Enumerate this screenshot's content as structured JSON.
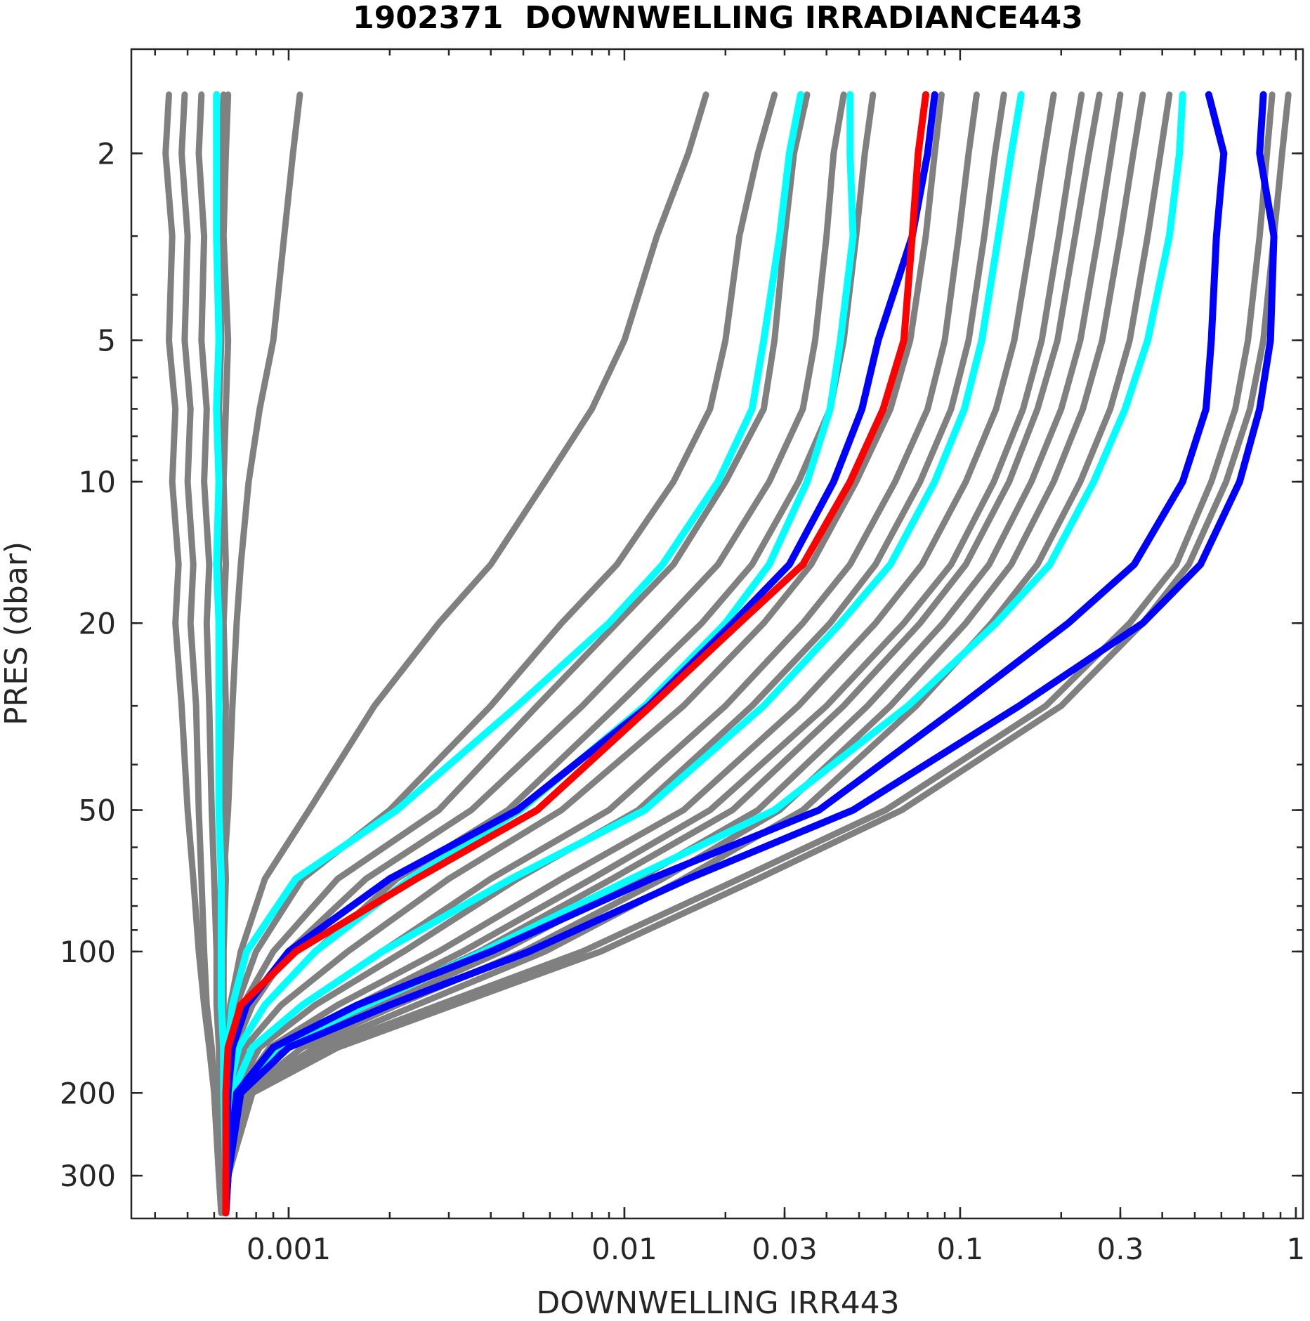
{
  "chart_data": {
    "type": "line",
    "title": "1902371  DOWNWELLING IRRADIANCE443",
    "xlabel": "DOWNWELLING IRR443",
    "ylabel": "PRES (dbar)",
    "x_scale": "log",
    "y_scale": "log",
    "y_reversed": true,
    "xlim": [
      0.00034,
      1.05
    ],
    "ylim": [
      1.2,
      370
    ],
    "x_ticks": [
      0.001,
      0.01,
      0.03,
      0.1,
      0.3,
      1
    ],
    "x_tick_labels": [
      "0.001",
      "0.01",
      "0.03",
      "0.1",
      "0.3",
      "1"
    ],
    "y_ticks": [
      2,
      5,
      10,
      20,
      50,
      100,
      200,
      300
    ],
    "y_tick_labels": [
      "2",
      "5",
      "10",
      "20",
      "50",
      "100",
      "200",
      "300"
    ],
    "grid": false,
    "colors": {
      "gray": "#808080",
      "cyan": "#00ffff",
      "blue": "#0000ff",
      "red": "#ff0000"
    },
    "pressure_levels": [
      1.5,
      2,
      3,
      5,
      7,
      10,
      15,
      20,
      30,
      50,
      70,
      100,
      130,
      160,
      200,
      300,
      360
    ],
    "series": [
      {
        "color": "gray",
        "values": [
          0.00044,
          0.00043,
          0.00045,
          0.00044,
          0.00046,
          0.00045,
          0.00047,
          0.00046,
          0.00048,
          0.0005,
          0.00052,
          0.00054,
          0.00056,
          0.00058,
          0.0006,
          0.00062,
          0.00063
        ]
      },
      {
        "color": "gray",
        "values": [
          0.00049,
          0.00048,
          0.0005,
          0.00049,
          0.00051,
          0.0005,
          0.00052,
          0.00051,
          0.00053,
          0.00054,
          0.00055,
          0.00056,
          0.00057,
          0.00059,
          0.0006,
          0.00062,
          0.00063
        ]
      },
      {
        "color": "gray",
        "values": [
          0.00055,
          0.00054,
          0.00056,
          0.00055,
          0.00057,
          0.00056,
          0.00058,
          0.00057,
          0.00058,
          0.00059,
          0.0006,
          0.00061,
          0.00061,
          0.00062,
          0.00062,
          0.00063,
          0.00064
        ]
      },
      {
        "color": "gray",
        "values": [
          0.00064,
          0.00063,
          0.00062,
          0.00063,
          0.00062,
          0.00063,
          0.00062,
          0.00063,
          0.00062,
          0.00062,
          0.00063,
          0.00063,
          0.00063,
          0.00063,
          0.00064,
          0.00064,
          0.00065
        ]
      },
      {
        "color": "gray",
        "values": [
          0.00066,
          0.00065,
          0.00064,
          0.00066,
          0.00065,
          0.00064,
          0.00065,
          0.00064,
          0.00065,
          0.00064,
          0.00065,
          0.00064,
          0.00064,
          0.00064,
          0.00064,
          0.00065,
          0.00065
        ]
      },
      {
        "color": "gray",
        "values": [
          0.00108,
          0.00103,
          0.00097,
          0.0009,
          0.00082,
          0.00076,
          0.00072,
          0.0007,
          0.00068,
          0.00066,
          0.00064,
          0.00063,
          0.00063,
          0.00063,
          0.00063,
          0.00064,
          0.00065
        ]
      },
      {
        "color": "gray",
        "values": [
          0.0175,
          0.0155,
          0.0125,
          0.01,
          0.008,
          0.0058,
          0.004,
          0.0028,
          0.0018,
          0.00115,
          0.00085,
          0.00072,
          0.00067,
          0.00065,
          0.00065,
          0.00065,
          0.00065
        ]
      },
      {
        "color": "gray",
        "values": [
          0.028,
          0.025,
          0.022,
          0.02,
          0.018,
          0.014,
          0.0095,
          0.0065,
          0.004,
          0.002,
          0.0011,
          0.0008,
          0.0007,
          0.00066,
          0.00065,
          0.00065,
          0.00065
        ]
      },
      {
        "color": "gray",
        "values": [
          0.035,
          0.032,
          0.03,
          0.028,
          0.026,
          0.02,
          0.014,
          0.0095,
          0.0055,
          0.0028,
          0.0014,
          0.0009,
          0.00073,
          0.00067,
          0.00065,
          0.00065,
          0.00065
        ]
      },
      {
        "color": "gray",
        "values": [
          0.045,
          0.042,
          0.04,
          0.037,
          0.034,
          0.027,
          0.019,
          0.013,
          0.0075,
          0.0035,
          0.0017,
          0.001,
          0.00078,
          0.00069,
          0.00066,
          0.00065,
          0.00065
        ]
      },
      {
        "color": "gray",
        "values": [
          0.055,
          0.052,
          0.049,
          0.045,
          0.041,
          0.033,
          0.024,
          0.017,
          0.0095,
          0.0045,
          0.0021,
          0.0012,
          0.00085,
          0.00071,
          0.00066,
          0.00065,
          0.00065
        ]
      },
      {
        "color": "gray",
        "values": [
          0.088,
          0.084,
          0.079,
          0.071,
          0.062,
          0.049,
          0.036,
          0.026,
          0.015,
          0.0065,
          0.003,
          0.0015,
          0.00095,
          0.00074,
          0.00067,
          0.00065,
          0.00065
        ]
      },
      {
        "color": "gray",
        "values": [
          0.112,
          0.106,
          0.099,
          0.09,
          0.08,
          0.064,
          0.047,
          0.034,
          0.02,
          0.009,
          0.004,
          0.0019,
          0.0011,
          0.00078,
          0.00068,
          0.00065,
          0.00065
        ]
      },
      {
        "color": "gray",
        "values": [
          0.135,
          0.127,
          0.118,
          0.106,
          0.094,
          0.076,
          0.056,
          0.041,
          0.024,
          0.011,
          0.0048,
          0.0022,
          0.0012,
          0.00082,
          0.00069,
          0.00065,
          0.00065
        ]
      },
      {
        "color": "gray",
        "values": [
          0.19,
          0.178,
          0.163,
          0.145,
          0.128,
          0.104,
          0.077,
          0.056,
          0.033,
          0.015,
          0.0065,
          0.0028,
          0.0014,
          0.00088,
          0.0007,
          0.00065,
          0.00065
        ]
      },
      {
        "color": "gray",
        "values": [
          0.23,
          0.215,
          0.197,
          0.175,
          0.154,
          0.126,
          0.094,
          0.068,
          0.04,
          0.018,
          0.008,
          0.0033,
          0.0016,
          0.00092,
          0.00071,
          0.00066,
          0.00065
        ]
      },
      {
        "color": "gray",
        "values": [
          0.26,
          0.242,
          0.22,
          0.195,
          0.17,
          0.14,
          0.104,
          0.076,
          0.045,
          0.021,
          0.0092,
          0.0037,
          0.0017,
          0.00095,
          0.00072,
          0.00066,
          0.00065
        ]
      },
      {
        "color": "gray",
        "values": [
          0.3,
          0.282,
          0.258,
          0.228,
          0.2,
          0.163,
          0.122,
          0.089,
          0.053,
          0.025,
          0.011,
          0.0043,
          0.0019,
          0.001,
          0.00073,
          0.00066,
          0.00065
        ]
      },
      {
        "color": "gray",
        "values": [
          0.35,
          0.328,
          0.3,
          0.265,
          0.232,
          0.19,
          0.142,
          0.104,
          0.062,
          0.029,
          0.013,
          0.005,
          0.0021,
          0.0011,
          0.00074,
          0.00066,
          0.00065
        ]
      },
      {
        "color": "gray",
        "values": [
          0.42,
          0.395,
          0.362,
          0.32,
          0.28,
          0.228,
          0.17,
          0.124,
          0.074,
          0.034,
          0.015,
          0.0058,
          0.0024,
          0.0012,
          0.00075,
          0.00066,
          0.00065
        ]
      },
      {
        "color": "gray",
        "values": [
          0.85,
          0.82,
          0.78,
          0.72,
          0.66,
          0.56,
          0.44,
          0.32,
          0.18,
          0.06,
          0.022,
          0.0075,
          0.0028,
          0.0013,
          0.00077,
          0.00066,
          0.00065
        ]
      },
      {
        "color": "gray",
        "values": [
          0.95,
          0.91,
          0.86,
          0.8,
          0.73,
          0.62,
          0.48,
          0.35,
          0.2,
          0.067,
          0.025,
          0.0085,
          0.0031,
          0.0014,
          0.00078,
          0.00066,
          0.00065
        ]
      },
      {
        "color": "cyan",
        "values": [
          0.00061,
          0.00061,
          0.00061,
          0.00062,
          0.00061,
          0.00062,
          0.00061,
          0.00062,
          0.00062,
          0.00062,
          0.00063,
          0.00063,
          0.00063,
          0.00064,
          0.00064,
          0.00065,
          0.00065
        ]
      },
      {
        "color": "cyan",
        "values": [
          0.0335,
          0.031,
          0.029,
          0.026,
          0.024,
          0.019,
          0.013,
          0.009,
          0.0048,
          0.0021,
          0.00105,
          0.00075,
          0.00068,
          0.00066,
          0.00065,
          0.00065,
          0.00065
        ]
      },
      {
        "color": "cyan",
        "values": [
          0.047,
          0.047,
          0.048,
          0.044,
          0.041,
          0.035,
          0.027,
          0.02,
          0.0115,
          0.0049,
          0.0023,
          0.0012,
          0.00085,
          0.00071,
          0.00066,
          0.00065,
          0.00065
        ]
      },
      {
        "color": "cyan",
        "values": [
          0.152,
          0.142,
          0.13,
          0.116,
          0.103,
          0.084,
          0.062,
          0.044,
          0.026,
          0.0115,
          0.0046,
          0.0019,
          0.0011,
          0.00078,
          0.00068,
          0.00065,
          0.00065
        ]
      },
      {
        "color": "cyan",
        "values": [
          0.46,
          0.45,
          0.42,
          0.362,
          0.31,
          0.25,
          0.185,
          0.128,
          0.07,
          0.028,
          0.0105,
          0.0038,
          0.0017,
          0.00092,
          0.00071,
          0.00066,
          0.00065
        ]
      },
      {
        "color": "blue",
        "values": [
          0.084,
          0.08,
          0.072,
          0.057,
          0.051,
          0.042,
          0.031,
          0.021,
          0.0118,
          0.0048,
          0.002,
          0.001,
          0.00075,
          0.00068,
          0.00066,
          0.00065,
          0.00065
        ]
      },
      {
        "color": "blue",
        "values": [
          0.55,
          0.61,
          0.58,
          0.56,
          0.54,
          0.46,
          0.33,
          0.21,
          0.1,
          0.038,
          0.012,
          0.004,
          0.0016,
          0.0009,
          0.0007,
          0.00066,
          0.00065
        ]
      },
      {
        "color": "blue",
        "values": [
          0.8,
          0.78,
          0.86,
          0.84,
          0.78,
          0.68,
          0.52,
          0.35,
          0.15,
          0.048,
          0.0155,
          0.0052,
          0.002,
          0.001,
          0.00072,
          0.00066,
          0.00065
        ]
      },
      {
        "color": "red",
        "values": [
          0.079,
          0.075,
          0.072,
          0.068,
          0.059,
          0.047,
          0.034,
          0.022,
          0.012,
          0.0055,
          0.0024,
          0.00105,
          0.00072,
          0.00066,
          0.00065,
          0.00065,
          0.00065
        ]
      }
    ]
  }
}
